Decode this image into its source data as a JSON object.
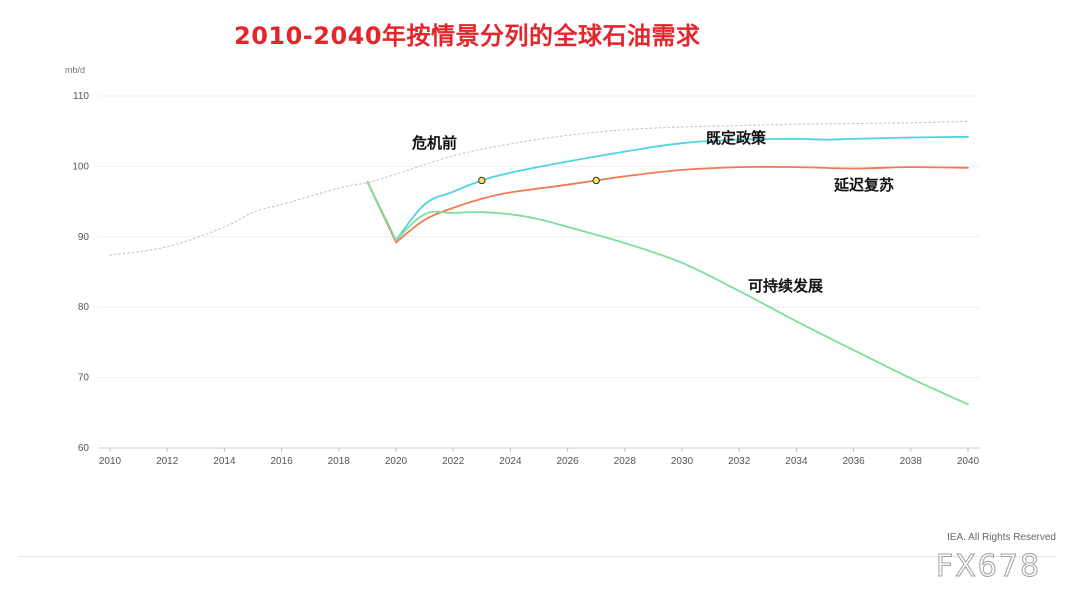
{
  "title": "2010-2040年按情景分列的全球石油需求",
  "credit": "IEA. All Rights Reserved",
  "watermark": "FX678",
  "chart_data": {
    "type": "line",
    "title": "2010-2040年按情景分列的全球石油需求",
    "ylabel": "mb/d",
    "xlabel": "",
    "xlim": [
      2010,
      2040
    ],
    "ylim": [
      60,
      110
    ],
    "xticks": [
      2010,
      2012,
      2014,
      2016,
      2018,
      2020,
      2022,
      2024,
      2026,
      2028,
      2030,
      2032,
      2034,
      2036,
      2038,
      2040
    ],
    "yticks": [
      60,
      70,
      80,
      90,
      100,
      110
    ],
    "grid": "horizontal",
    "legend": "inline labels",
    "series": [
      {
        "name": "危机前",
        "color": "#c8c8c8",
        "style": "dotted",
        "x": [
          2010,
          2012,
          2014,
          2015,
          2016,
          2018,
          2019,
          2020,
          2022,
          2024,
          2026,
          2028,
          2030,
          2032,
          2034,
          2036,
          2038,
          2040
        ],
        "y": [
          87.4,
          88.6,
          91.4,
          93.5,
          94.6,
          96.9,
          97.7,
          98.9,
          101.5,
          103.2,
          104.4,
          105.2,
          105.6,
          105.8,
          106.0,
          106.1,
          106.2,
          106.4
        ]
      },
      {
        "name": "既定政策",
        "color": "#4fd3e3",
        "style": "solid",
        "x": [
          2019,
          2020,
          2021,
          2022,
          2023,
          2024,
          2026,
          2028,
          2030,
          2032,
          2034,
          2035,
          2036,
          2038,
          2040
        ],
        "y": [
          97.8,
          89.5,
          94.6,
          96.4,
          98.0,
          99.1,
          100.7,
          102.1,
          103.3,
          103.8,
          103.9,
          103.8,
          103.9,
          104.1,
          104.2
        ]
      },
      {
        "name": "延迟复苏",
        "color": "#f07a55",
        "style": "solid",
        "x": [
          2019,
          2020,
          2021,
          2022,
          2023,
          2024,
          2026,
          2027,
          2028,
          2030,
          2032,
          2034,
          2036,
          2038,
          2040
        ],
        "y": [
          97.8,
          89.2,
          92.4,
          94.1,
          95.4,
          96.3,
          97.4,
          98.0,
          98.6,
          99.5,
          99.9,
          99.9,
          99.7,
          99.9,
          99.8
        ]
      },
      {
        "name": "可持续发展",
        "color": "#7de09a",
        "style": "solid",
        "x": [
          2019,
          2020,
          2021,
          2022,
          2023,
          2024,
          2025,
          2026,
          2028,
          2030,
          2032,
          2034,
          2036,
          2038,
          2040
        ],
        "y": [
          97.8,
          89.5,
          93.2,
          93.4,
          93.5,
          93.2,
          92.5,
          91.4,
          89.1,
          86.3,
          82.3,
          78.0,
          73.9,
          69.9,
          66.2
        ]
      }
    ],
    "markers": [
      {
        "x": 2023,
        "y": 98.0,
        "color": "#f2ea5a"
      },
      {
        "x": 2027,
        "y": 98.0,
        "color": "#f2ea5a"
      }
    ]
  }
}
